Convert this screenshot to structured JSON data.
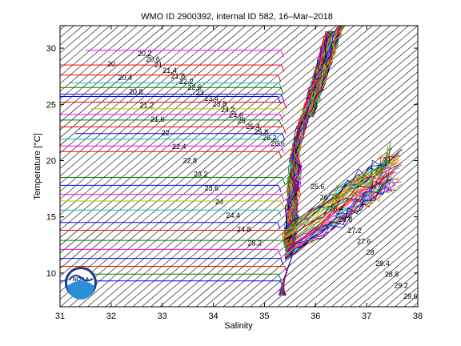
{
  "chart_data": {
    "type": "line",
    "title": "WMO ID 2900392, internal ID 582, 16–Mar–2018",
    "xlabel": "Salinity",
    "ylabel": "Temperature [°C]",
    "xlim": [
      31,
      38
    ],
    "ylim": [
      7,
      32
    ],
    "x_ticks": [
      "31",
      "32",
      "33",
      "34",
      "35",
      "36",
      "37",
      "38"
    ],
    "y_ticks": [
      "10",
      "15",
      "20",
      "25",
      "30"
    ],
    "grid": false,
    "logo": "NOAA",
    "density_contours": {
      "labels_upper": [
        "20.2",
        "20.6",
        "21",
        "21.4",
        "21.8",
        "22.2",
        "22.6",
        "23",
        "23.4",
        "23.8",
        "24.2",
        "24.6",
        "25",
        "25.4",
        "25.8",
        "26.2",
        "26.6"
      ],
      "labels_lower": [
        "20",
        "20.4",
        "20.8",
        "21.2",
        "21.6",
        "22",
        "22.4",
        "22.8",
        "23.2",
        "23.6",
        "24",
        "24.4",
        "24.8",
        "25.2",
        "25.6",
        "26",
        "26.4",
        "26.8",
        "27.2",
        "27.6",
        "28",
        "28.4",
        "28.8",
        "29.2",
        "29.6"
      ]
    },
    "series_note": "Many colored T–S profiles: horizontal segments from low salinity at near-constant temperature converging near S≈35.3, with a dense cluster rising to ~32 °C near S≈36 and branches toward S≈37.5 at 16–20 °C.",
    "profiles": [
      {
        "color": "#ff00ff",
        "y": 29.8,
        "xstart": 31.5
      },
      {
        "color": "#ff0000",
        "y": 28.5,
        "xstart": 31.0
      },
      {
        "color": "#ff0000",
        "y": 27.6,
        "xstart": 31.0
      },
      {
        "color": "#00bfbf",
        "y": 26.9,
        "xstart": 31.2
      },
      {
        "color": "#008000",
        "y": 26.5,
        "xstart": 31.0
      },
      {
        "color": "#0000ff",
        "y": 25.9,
        "xstart": 31.0
      },
      {
        "color": "#0000ff",
        "y": 25.7,
        "xstart": 31.0
      },
      {
        "color": "#ff0000",
        "y": 25.2,
        "xstart": 31.0
      },
      {
        "color": "#bfbf00",
        "y": 24.6,
        "xstart": 31.6
      },
      {
        "color": "#ff00ff",
        "y": 24.1,
        "xstart": 31.0
      },
      {
        "color": "#008000",
        "y": 23.6,
        "xstart": 31.0
      },
      {
        "color": "#ff0000",
        "y": 23.0,
        "xstart": 31.0
      },
      {
        "color": "#0000ff",
        "y": 22.4,
        "xstart": 31.3
      },
      {
        "color": "#00bfbf",
        "y": 21.9,
        "xstart": 31.0
      },
      {
        "color": "#ff00ff",
        "y": 21.3,
        "xstart": 31.0
      },
      {
        "color": "#ff0000",
        "y": 20.8,
        "xstart": 31.0
      },
      {
        "color": "#008000",
        "y": 18.5,
        "xstart": 31.0
      },
      {
        "color": "#0000ff",
        "y": 17.8,
        "xstart": 31.0
      },
      {
        "color": "#ff00ff",
        "y": 17.0,
        "xstart": 31.0
      },
      {
        "color": "#bfbf00",
        "y": 16.4,
        "xstart": 31.0
      },
      {
        "color": "#00bfbf",
        "y": 15.6,
        "xstart": 31.0
      },
      {
        "color": "#0000ff",
        "y": 14.5,
        "xstart": 31.0
      },
      {
        "color": "#ff0000",
        "y": 13.8,
        "xstart": 31.0
      },
      {
        "color": "#008000",
        "y": 12.9,
        "xstart": 31.0
      },
      {
        "color": "#ff00ff",
        "y": 12.1,
        "xstart": 31.0
      },
      {
        "color": "#0000ff",
        "y": 11.3,
        "xstart": 31.0
      },
      {
        "color": "#ff0000",
        "y": 10.6,
        "xstart": 31.0
      },
      {
        "color": "#008000",
        "y": 9.9,
        "xstart": 31.5
      },
      {
        "color": "#0000ff",
        "y": 9.3,
        "xstart": 31.0
      }
    ]
  }
}
